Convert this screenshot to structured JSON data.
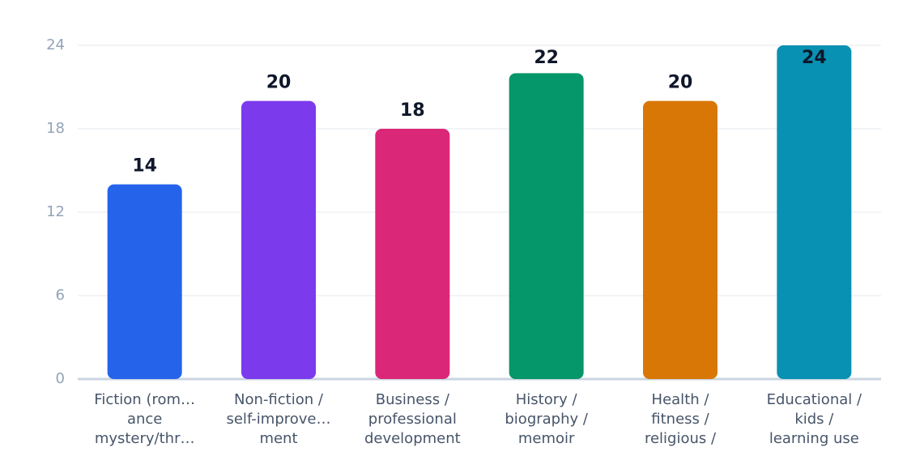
{
  "chart_data": {
    "type": "bar",
    "categories": [
      [
        "Fiction (rom…",
        "ance",
        "mystery/thr…"
      ],
      [
        "Non-fiction /",
        "self-improve…",
        "ment"
      ],
      [
        "Business /",
        "professional",
        "development"
      ],
      [
        "History /",
        "biography /",
        "memoir"
      ],
      [
        "Health /",
        "fitness /",
        "religious /"
      ],
      [
        "Educational /",
        "kids /",
        "learning use"
      ]
    ],
    "values": [
      14,
      20,
      18,
      22,
      20,
      24
    ],
    "colors": [
      "#2563eb",
      "#7c3aed",
      "#db2777",
      "#059669",
      "#d97706",
      "#0891b2"
    ],
    "ylim": [
      0,
      24
    ],
    "yticks": [
      0,
      6,
      12,
      18,
      24
    ],
    "grid": true
  }
}
